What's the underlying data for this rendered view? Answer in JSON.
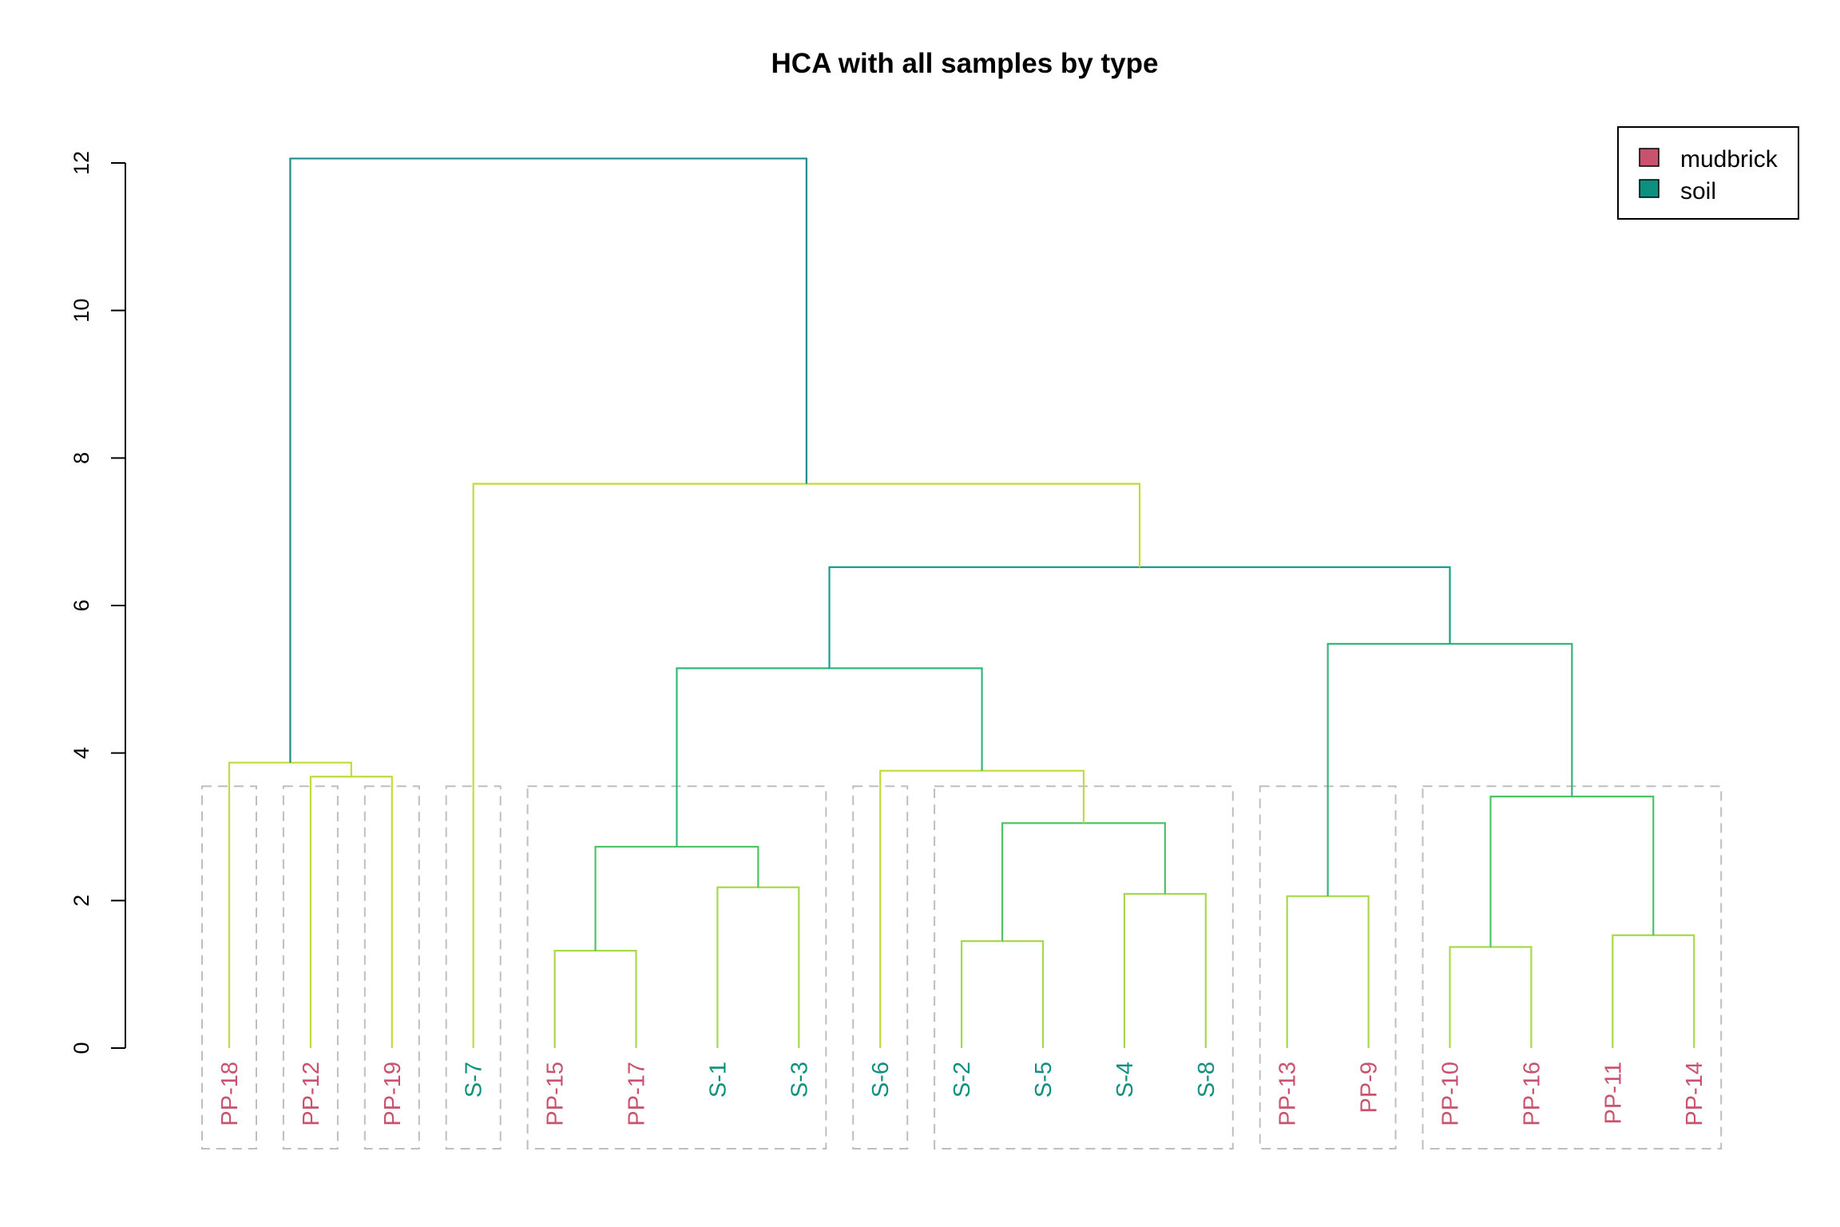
{
  "chart_data": {
    "type": "dendrogram",
    "title": "HCA with all samples by type",
    "ylim": [
      0,
      12
    ],
    "yticks": [
      0,
      2,
      4,
      6,
      8,
      10,
      12
    ],
    "colors": {
      "mudbrick": "#C9536E",
      "soil": "#0E9080",
      "box": "#BEBEBE",
      "axis": "#000000"
    },
    "legend": {
      "position": "top-right",
      "entries": [
        {
          "label": "mudbrick",
          "color": "#C9536E"
        },
        {
          "label": "soil",
          "color": "#0E9080"
        }
      ]
    },
    "leaves": [
      {
        "label": "PP-18",
        "type": "mudbrick"
      },
      {
        "label": "PP-12",
        "type": "mudbrick"
      },
      {
        "label": "PP-19",
        "type": "mudbrick"
      },
      {
        "label": "S-7",
        "type": "soil"
      },
      {
        "label": "PP-15",
        "type": "mudbrick"
      },
      {
        "label": "PP-17",
        "type": "mudbrick"
      },
      {
        "label": "S-1",
        "type": "soil"
      },
      {
        "label": "S-3",
        "type": "soil"
      },
      {
        "label": "S-6",
        "type": "soil"
      },
      {
        "label": "S-2",
        "type": "soil"
      },
      {
        "label": "S-5",
        "type": "soil"
      },
      {
        "label": "S-4",
        "type": "soil"
      },
      {
        "label": "S-8",
        "type": "soil"
      },
      {
        "label": "PP-13",
        "type": "mudbrick"
      },
      {
        "label": "PP-9",
        "type": "mudbrick"
      },
      {
        "label": "PP-10",
        "type": "mudbrick"
      },
      {
        "label": "PP-16",
        "type": "mudbrick"
      },
      {
        "label": "PP-11",
        "type": "mudbrick"
      },
      {
        "label": "PP-14",
        "type": "mudbrick"
      }
    ],
    "merges": [
      {
        "id": "m1",
        "left": "L4",
        "right": "L5",
        "height": 1.32,
        "color": "#A8D94A"
      },
      {
        "id": "m2",
        "left": "L15",
        "right": "L16",
        "height": 1.37,
        "color": "#A8D94A"
      },
      {
        "id": "m3",
        "left": "L9",
        "right": "L10",
        "height": 1.45,
        "color": "#A8D94A"
      },
      {
        "id": "m4",
        "left": "L17",
        "right": "L18",
        "height": 1.53,
        "color": "#A8D94A"
      },
      {
        "id": "m5",
        "left": "L13",
        "right": "L14",
        "height": 2.06,
        "color": "#A8D94A"
      },
      {
        "id": "m6",
        "left": "L11",
        "right": "L12",
        "height": 2.09,
        "color": "#A8D94A"
      },
      {
        "id": "m7",
        "left": "L6",
        "right": "L7",
        "height": 2.18,
        "color": "#A8D94A"
      },
      {
        "id": "m8",
        "left": "m1",
        "right": "m7",
        "height": 2.73,
        "color": "#4DC365"
      },
      {
        "id": "m9",
        "left": "m3",
        "right": "m6",
        "height": 3.05,
        "color": "#4DC365"
      },
      {
        "id": "m10",
        "left": "m2",
        "right": "m4",
        "height": 3.41,
        "color": "#4DC365"
      },
      {
        "id": "m11",
        "left": "L1",
        "right": "L2",
        "height": 3.68,
        "color": "#C4DA3B"
      },
      {
        "id": "m12",
        "left": "L8",
        "right": "m9",
        "height": 3.76,
        "color": "#C4DA3B"
      },
      {
        "id": "m13",
        "left": "L0",
        "right": "m11",
        "height": 3.87,
        "color": "#C4DA3B"
      },
      {
        "id": "m14",
        "left": "m8",
        "right": "m12",
        "height": 5.15,
        "color": "#34B67A"
      },
      {
        "id": "m15",
        "left": "m5",
        "right": "m10",
        "height": 5.48,
        "color": "#34B67A"
      },
      {
        "id": "m16",
        "left": "m14",
        "right": "m15",
        "height": 6.52,
        "color": "#189E8A"
      },
      {
        "id": "m17",
        "left": "L3",
        "right": "m16",
        "height": 7.65,
        "color": "#C4DA3B"
      },
      {
        "id": "m18",
        "left": "m13",
        "right": "m17",
        "height": 12.06,
        "color": "#1F8A8C"
      }
    ],
    "clusters": [
      {
        "first": 0,
        "last": 0
      },
      {
        "first": 1,
        "last": 1
      },
      {
        "first": 2,
        "last": 2
      },
      {
        "first": 3,
        "last": 3
      },
      {
        "first": 4,
        "last": 7
      },
      {
        "first": 8,
        "last": 8
      },
      {
        "first": 9,
        "last": 12
      },
      {
        "first": 13,
        "last": 14
      },
      {
        "first": 15,
        "last": 18
      }
    ]
  }
}
